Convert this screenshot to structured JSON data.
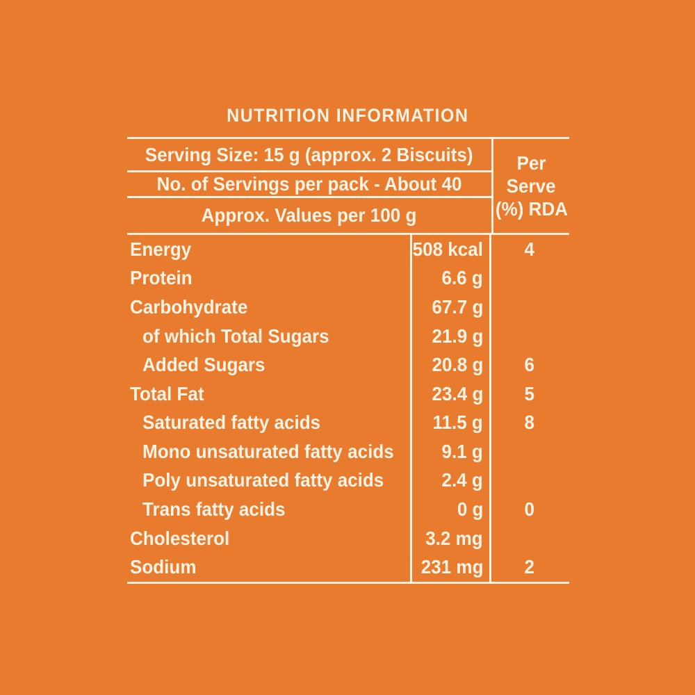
{
  "title": "NUTRITION INFORMATION",
  "colors": {
    "background": "#E87B2D",
    "text": "#FAF2E3",
    "table_lines": "#FAF2E3"
  },
  "header": {
    "serving_size": "Serving Size: 15 g (approx. 2 Biscuits)",
    "servings_per_pack": "No. of Servings per pack - About 40",
    "approx_values": "Approx. Values per 100 g",
    "per_serve": {
      "line1": "Per",
      "line2": "Serve",
      "line3": "(%) RDA"
    }
  },
  "nutrients": [
    {
      "name": "Energy",
      "value": "508 kcal",
      "rda": "4",
      "indent": false
    },
    {
      "name": "Protein",
      "value": "6.6 g",
      "rda": "",
      "indent": false
    },
    {
      "name": "Carbohydrate",
      "value": "67.7 g",
      "rda": "",
      "indent": false
    },
    {
      "name": "of which Total Sugars",
      "value": "21.9 g",
      "rda": "",
      "indent": true
    },
    {
      "name": "Added Sugars",
      "value": "20.8 g",
      "rda": "6",
      "indent": true
    },
    {
      "name": "Total Fat",
      "value": "23.4 g",
      "rda": "5",
      "indent": false
    },
    {
      "name": "Saturated fatty acids",
      "value": "11.5 g",
      "rda": "8",
      "indent": true
    },
    {
      "name": "Mono unsaturated fatty acids",
      "value": "9.1 g",
      "rda": "",
      "indent": true
    },
    {
      "name": "Poly unsaturated fatty acids",
      "value": "2.4 g",
      "rda": "",
      "indent": true
    },
    {
      "name": "Trans fatty acids",
      "value": "0 g",
      "rda": "0",
      "indent": true
    },
    {
      "name": "Cholesterol",
      "value": "3.2 mg",
      "rda": "",
      "indent": false
    },
    {
      "name": "Sodium",
      "value": "231 mg",
      "rda": "2",
      "indent": false
    }
  ]
}
